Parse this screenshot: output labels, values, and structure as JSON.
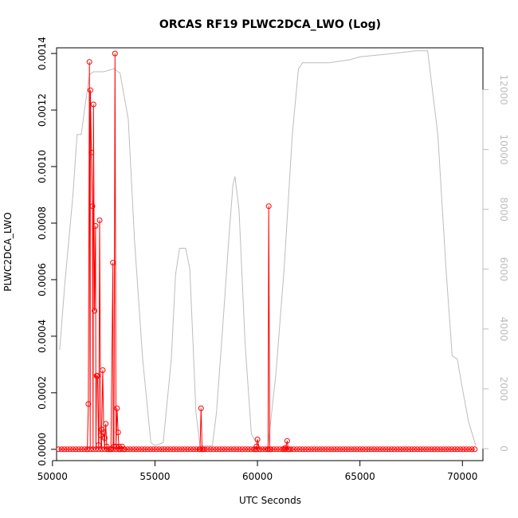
{
  "chart_data": {
    "type": "line",
    "title": "ORCAS RF19 PLWC2DCA_LWO (Log)",
    "xlabel": "UTC Seconds",
    "ylabel": "PLWC2DCA_LWO",
    "xlim": [
      50200,
      71000
    ],
    "ylim": [
      -4e-05,
      0.00142
    ],
    "y2lim": [
      -400,
      13400
    ],
    "x_ticks": [
      50000,
      55000,
      60000,
      65000,
      70000
    ],
    "x_tick_labels": [
      "50000",
      "55000",
      "60000",
      "65000",
      "70000"
    ],
    "y_ticks": [
      0.0,
      0.0002,
      0.0004,
      0.0006,
      0.0008,
      0.001,
      0.0012,
      0.0014
    ],
    "y_tick_labels": [
      "0.0000",
      "0.0002",
      "0.0004",
      "0.0006",
      "0.0008",
      "0.0010",
      "0.0012",
      "0.0014"
    ],
    "y2_ticks": [
      0,
      2000,
      4000,
      6000,
      8000,
      10000,
      12000
    ],
    "y2_tick_labels": [
      "0",
      "2000",
      "4000",
      "6000",
      "8000",
      "10000",
      "12000"
    ],
    "colors": {
      "main_series": "#ff0000",
      "secondary_series": "#bdbdbd",
      "axes": "#000000"
    },
    "baseline": {
      "x_start": 50300,
      "x_end": 70650,
      "x_step": 140,
      "value": 0.0
    },
    "series": [
      {
        "axis": "left",
        "values": [
          [
            51700,
            0.0
          ],
          [
            51750,
            0.00016
          ],
          [
            51800,
            0.00137
          ],
          [
            51850,
            0.00127
          ],
          [
            51900,
            0.00105
          ],
          [
            51950,
            0.00086
          ],
          [
            52000,
            0.00122
          ],
          [
            52050,
            0.00049
          ],
          [
            52100,
            0.00079
          ],
          [
            52150,
            0.00026
          ],
          [
            52200,
            0.00026
          ],
          [
            52250,
            1.5e-05
          ],
          [
            52300,
            0.00081
          ],
          [
            52350,
            5e-05
          ],
          [
            52400,
            7e-05
          ],
          [
            52450,
            0.00028
          ],
          [
            52500,
            6e-05
          ],
          [
            52550,
            4e-05
          ],
          [
            52600,
            9e-05
          ],
          [
            52650,
            1e-05
          ],
          [
            52750,
            0.0
          ],
          [
            52850,
            0.0
          ],
          [
            52950,
            0.00066
          ],
          [
            53000,
            1e-05
          ],
          [
            53050,
            0.0014
          ],
          [
            53100,
            1e-05
          ],
          [
            53150,
            0.000145
          ],
          [
            53200,
            6e-05
          ],
          [
            53250,
            1e-05
          ],
          [
            53300,
            0.0
          ],
          [
            53400,
            1e-05
          ],
          [
            53500,
            0.0
          ],
          [
            57200,
            0.0
          ],
          [
            57250,
            0.000145
          ],
          [
            57350,
            0.0
          ],
          [
            59900,
            0.0
          ],
          [
            59950,
            1e-05
          ],
          [
            60000,
            3.5e-05
          ],
          [
            60100,
            0.0
          ],
          [
            60500,
            0.0
          ],
          [
            60550,
            0.00086
          ],
          [
            60600,
            0.0
          ],
          [
            61300,
            0.0
          ],
          [
            61350,
            5e-06
          ],
          [
            61450,
            3e-05
          ],
          [
            61550,
            0.0
          ]
        ]
      },
      {
        "axis": "right",
        "values": [
          [
            50350,
            3300
          ],
          [
            50600,
            5500
          ],
          [
            51000,
            8500
          ],
          [
            51200,
            10500
          ],
          [
            51400,
            10500
          ],
          [
            51600,
            11500
          ],
          [
            51800,
            12500
          ],
          [
            52000,
            12600
          ],
          [
            52500,
            12600
          ],
          [
            53000,
            12700
          ],
          [
            53300,
            12550
          ],
          [
            53700,
            11000
          ],
          [
            54000,
            7000
          ],
          [
            54400,
            3000
          ],
          [
            54800,
            200
          ],
          [
            55000,
            100
          ],
          [
            55400,
            200
          ],
          [
            55800,
            3000
          ],
          [
            56000,
            5800
          ],
          [
            56200,
            6700
          ],
          [
            56500,
            6700
          ],
          [
            56700,
            6000
          ],
          [
            57000,
            1200
          ],
          [
            57200,
            100
          ],
          [
            57500,
            100
          ],
          [
            57800,
            100
          ],
          [
            58000,
            1200
          ],
          [
            58300,
            4000
          ],
          [
            58600,
            7000
          ],
          [
            58800,
            8800
          ],
          [
            58900,
            9100
          ],
          [
            59100,
            8000
          ],
          [
            59400,
            3500
          ],
          [
            59700,
            500
          ],
          [
            60100,
            0
          ],
          [
            60500,
            0
          ],
          [
            60900,
            2500
          ],
          [
            61300,
            6000
          ],
          [
            61700,
            10500
          ],
          [
            62000,
            12700
          ],
          [
            62200,
            12900
          ],
          [
            63500,
            12900
          ],
          [
            64500,
            13000
          ],
          [
            65000,
            13100
          ],
          [
            66500,
            13200
          ],
          [
            67700,
            13300
          ],
          [
            68300,
            13300
          ],
          [
            68800,
            10500
          ],
          [
            69200,
            6000
          ],
          [
            69500,
            3100
          ],
          [
            69750,
            3000
          ],
          [
            70000,
            2000
          ],
          [
            70300,
            900
          ],
          [
            70650,
            100
          ]
        ]
      }
    ]
  }
}
